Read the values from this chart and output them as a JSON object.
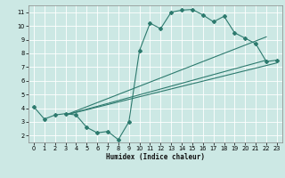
{
  "xlabel": "Humidex (Indice chaleur)",
  "background_color": "#cce8e4",
  "line_color": "#2d7a6e",
  "grid_color": "#ffffff",
  "xlim": [
    -0.5,
    23.5
  ],
  "ylim": [
    1.5,
    11.5
  ],
  "xticks": [
    0,
    1,
    2,
    3,
    4,
    5,
    6,
    7,
    8,
    9,
    10,
    11,
    12,
    13,
    14,
    15,
    16,
    17,
    18,
    19,
    20,
    21,
    22,
    23
  ],
  "yticks": [
    2,
    3,
    4,
    5,
    6,
    7,
    8,
    9,
    10,
    11
  ],
  "curve1_x": [
    0,
    1,
    2,
    3,
    4,
    5,
    6,
    7,
    8,
    9,
    10,
    11,
    12,
    13,
    14,
    15,
    16,
    17,
    18,
    19,
    20,
    21,
    22,
    23
  ],
  "curve1_y": [
    4.1,
    3.2,
    3.5,
    3.6,
    3.5,
    2.6,
    2.2,
    2.3,
    1.7,
    3.0,
    8.2,
    10.2,
    9.8,
    11.0,
    11.15,
    11.2,
    10.8,
    10.3,
    10.7,
    9.5,
    9.1,
    8.7,
    7.4,
    7.5
  ],
  "line1_x": [
    3,
    22
  ],
  "line1_y": [
    3.5,
    7.5
  ],
  "line2_x": [
    3,
    22
  ],
  "line2_y": [
    3.5,
    9.2
  ],
  "line3_x": [
    3,
    23
  ],
  "line3_y": [
    3.5,
    7.3
  ],
  "xlabel_fontsize": 5.5,
  "tick_fontsize": 4.8,
  "linewidth": 0.8,
  "markersize": 2.0
}
